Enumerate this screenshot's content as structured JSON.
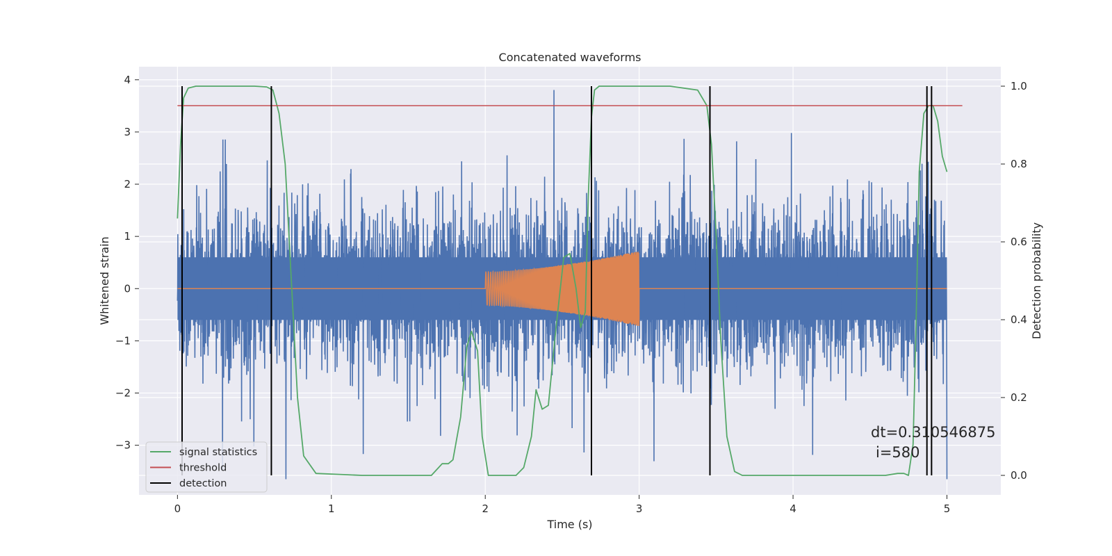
{
  "chart_data": {
    "type": "line",
    "title": "Concatenated waveforms",
    "xlabel": "Time (s)",
    "ylabel": "Whitened strain",
    "y2label": "Detection probability",
    "xlim": [
      -0.25,
      5.35
    ],
    "ylim": [
      -3.95,
      4.25
    ],
    "y2lim": [
      -0.05,
      1.05
    ],
    "x_ticks": [
      0,
      1,
      2,
      3,
      4,
      5
    ],
    "y_ticks": [
      -3,
      -2,
      -1,
      0,
      1,
      2,
      3,
      4
    ],
    "y2_ticks": [
      0.0,
      0.2,
      0.4,
      0.6,
      0.8,
      1.0
    ],
    "x_tick_labels": [
      "0",
      "1",
      "2",
      "3",
      "4",
      "5"
    ],
    "y_tick_labels": [
      "−3",
      "−2",
      "−1",
      "0",
      "1",
      "2",
      "3",
      "4"
    ],
    "y2_tick_labels": [
      "0.0",
      "0.2",
      "0.4",
      "0.6",
      "0.8",
      "1.0"
    ],
    "grid": true,
    "legend_position": "lower-left",
    "legend": [
      "signal statistics",
      "threshold",
      "detection"
    ],
    "series": [
      {
        "kind": "noise",
        "color": "#4c72b0",
        "axis": "left",
        "x_range": [
          0,
          5
        ],
        "typical_band": [
          -0.6,
          0.6
        ],
        "peak_max": 3.9,
        "peak_min": -3.65
      },
      {
        "kind": "chirp",
        "color": "#dd8452",
        "axis": "left",
        "x_range": [
          2.0,
          3.0
        ],
        "amplitude_start": 0.32,
        "amplitude_end": 0.72
      },
      {
        "name": "signal statistics",
        "color": "#55a868",
        "axis": "right",
        "x": [
          0,
          0.02,
          0.04,
          0.07,
          0.12,
          0.3,
          0.5,
          0.58,
          0.62,
          0.66,
          0.7,
          0.74,
          0.78,
          0.82,
          0.9,
          1.2,
          1.5,
          1.65,
          1.72,
          1.76,
          1.79,
          1.84,
          1.88,
          1.91,
          1.95,
          1.98,
          2.02,
          2.1,
          2.2,
          2.25,
          2.3,
          2.33,
          2.37,
          2.41,
          2.46,
          2.51,
          2.55,
          2.59,
          2.62,
          2.65,
          2.67,
          2.69,
          2.71,
          2.74,
          2.8,
          3.0,
          3.2,
          3.38,
          3.44,
          3.47,
          3.5,
          3.53,
          3.57,
          3.62,
          3.67,
          3.75,
          4.0,
          4.3,
          4.6,
          4.68,
          4.72,
          4.75,
          4.78,
          4.8,
          4.82,
          4.85,
          4.88,
          4.91,
          4.94,
          4.97,
          5.0
        ],
        "y": [
          0.66,
          0.85,
          0.97,
          0.995,
          1.0,
          1.0,
          1.0,
          0.998,
          0.99,
          0.93,
          0.8,
          0.5,
          0.2,
          0.05,
          0.005,
          0.0,
          0.0,
          0.0,
          0.03,
          0.03,
          0.04,
          0.15,
          0.33,
          0.37,
          0.32,
          0.1,
          0.0,
          0.0,
          0.0,
          0.02,
          0.1,
          0.22,
          0.17,
          0.18,
          0.38,
          0.56,
          0.57,
          0.48,
          0.38,
          0.42,
          0.72,
          0.92,
          0.99,
          1.0,
          1.0,
          1.0,
          1.0,
          0.99,
          0.95,
          0.85,
          0.62,
          0.35,
          0.1,
          0.01,
          0.0,
          0.0,
          0.0,
          0.0,
          0.0,
          0.005,
          0.005,
          0.0,
          0.08,
          0.4,
          0.78,
          0.93,
          0.95,
          0.95,
          0.91,
          0.82,
          0.78
        ]
      },
      {
        "name": "threshold",
        "color": "#c44e52",
        "axis": "right",
        "x": [
          0,
          5.1
        ],
        "y": [
          0.95,
          0.95
        ]
      },
      {
        "name": "detection",
        "color": "#000000",
        "axis": "right",
        "kind": "vlines",
        "x": [
          0.03,
          0.61,
          2.69,
          3.46,
          4.87,
          4.9
        ],
        "ymin": 0.0,
        "ymax": 1.0
      }
    ],
    "annotation": {
      "line1": "dt=0.310546875",
      "line2": "i=580",
      "x": 4.5,
      "y": -3.05
    }
  }
}
